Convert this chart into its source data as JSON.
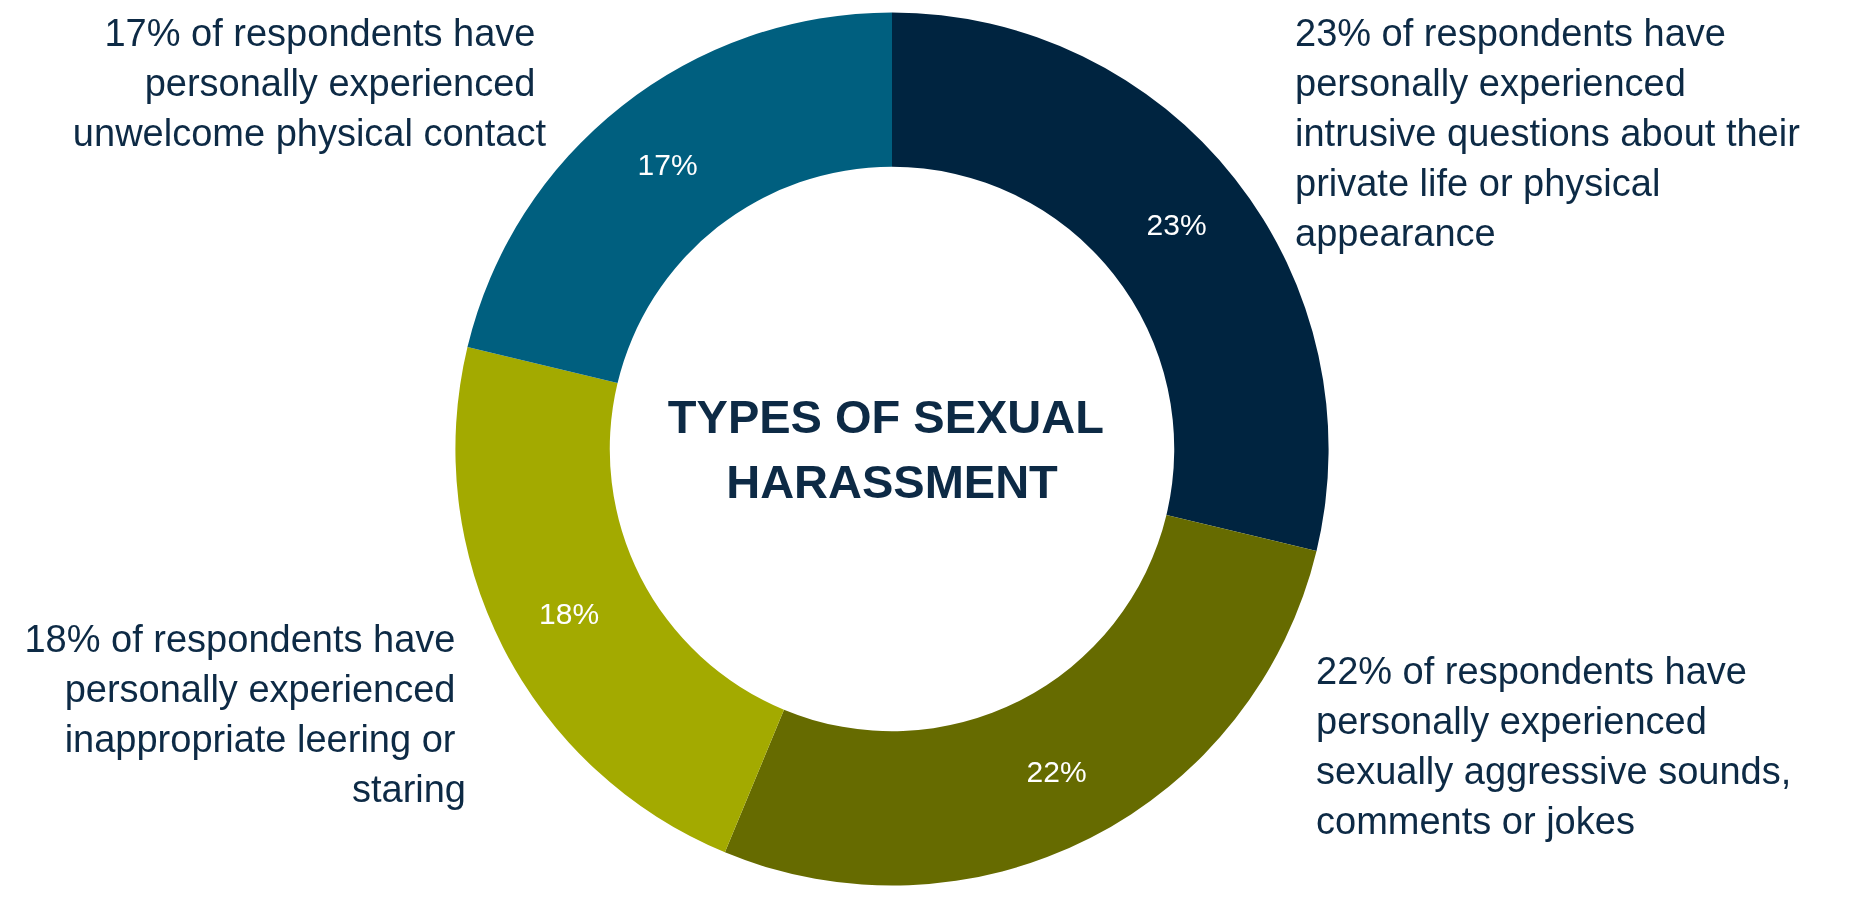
{
  "chart_data": {
    "type": "donut",
    "title": "TYPES OF SEXUAL HARASSMENT",
    "categories": [
      "23% of respondents have personally experienced intrusive questions about their private life or physical appearance",
      "22% of respondents have personally experienced sexually aggressive sounds, comments or jokes",
      "18% of respondents have personally experienced inappropriate leering or staring",
      "17% of respondents have personally experienced unwelcome physical contact"
    ],
    "values": [
      23,
      22,
      18,
      17
    ],
    "value_labels": [
      "23%",
      "22%",
      "18%",
      "17%"
    ],
    "colors": [
      "#002440",
      "#666b00",
      "#a3aa00",
      "#005f7f"
    ],
    "legend": false
  }
}
